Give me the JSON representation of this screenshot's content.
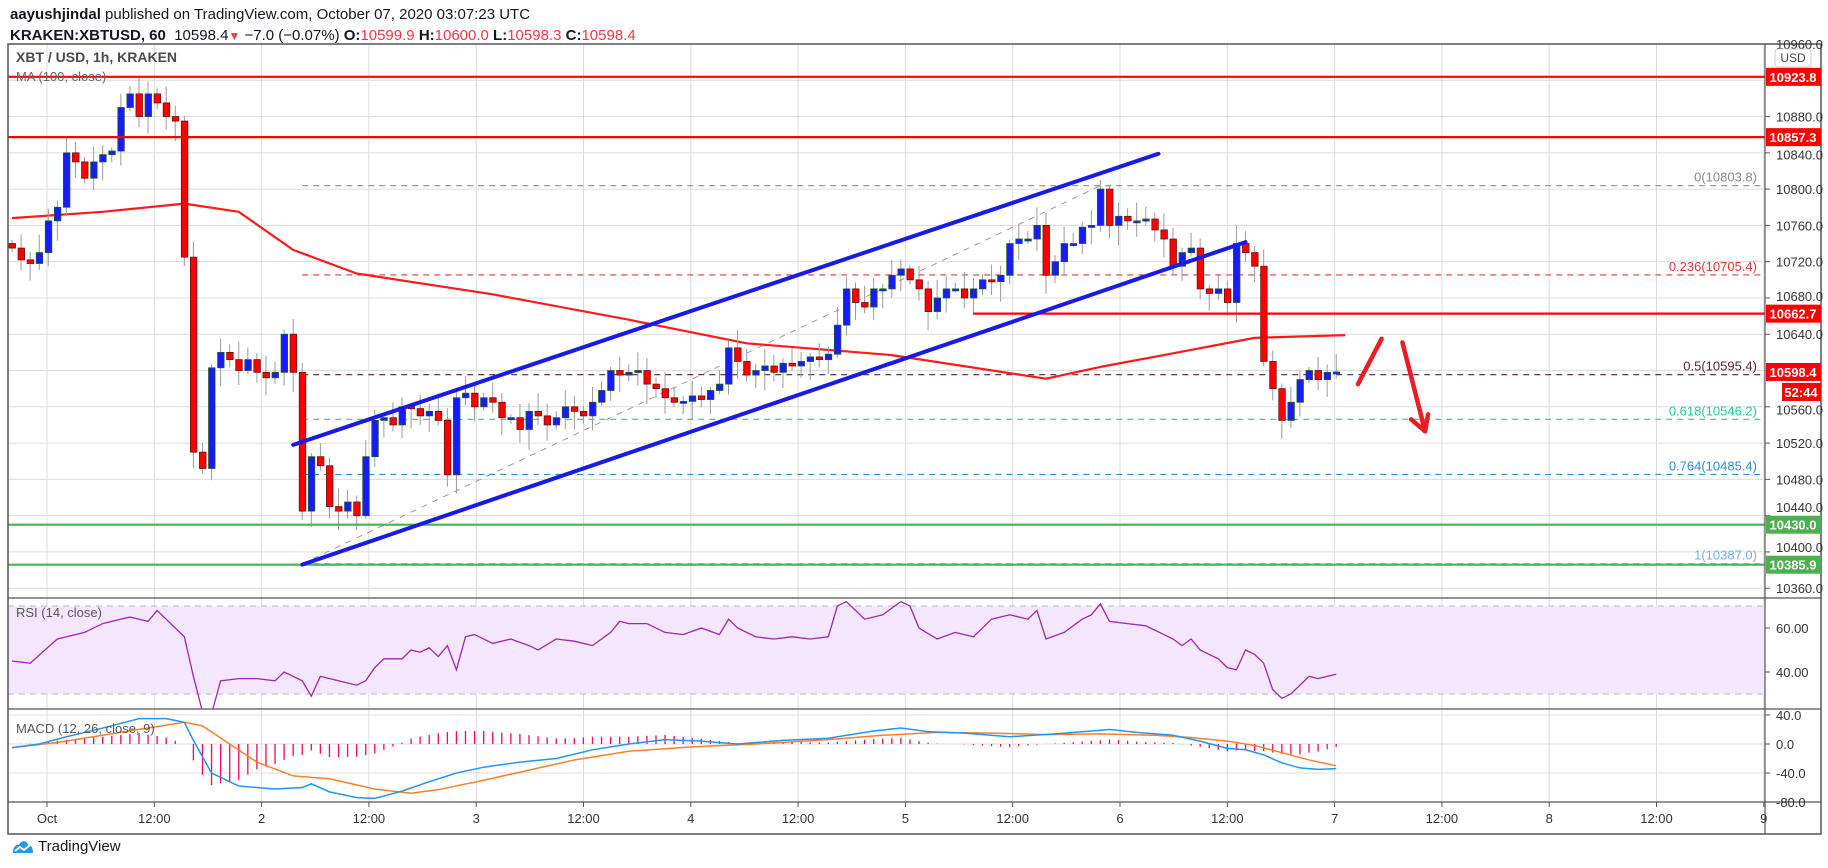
{
  "header": {
    "author": "aayushjindal",
    "published": " published on TradingView.com, October 07, 2020 03:07:23 UTC",
    "symbol": "KRAKEN:XBTUSD, 60",
    "last": "10598.4",
    "change": "−7.0 (−0.07%)",
    "o_label": "O:",
    "o": "10599.9",
    "h_label": "H:",
    "h": "10600.0",
    "l_label": "L:",
    "l": "10598.3",
    "c_label": "C:",
    "c": "10598.4"
  },
  "legend": {
    "title": "XBT / USD, 1h, KRAKEN",
    "ma": "MA (100, close)",
    "rsi": "RSI (14, close)",
    "macd": "MACD (12, 26, close, 9)"
  },
  "footer": {
    "brand": "TradingView"
  },
  "colors": {
    "up": "#1a1aff",
    "down": "#ff0000",
    "ma": "#ff1a1a",
    "channel": "#1a1ae6",
    "support": "#4caf50",
    "resistance": "#ff0000",
    "rsi": "#9c27b0",
    "macd": "#2196f3",
    "signal": "#ff7f27",
    "hist": "#ff0066"
  },
  "chart_data": {
    "type": "candlestick",
    "title": "XBT / USD, 1h, KRAKEN",
    "first_open": 10740,
    "closes": [
      10735,
      10722,
      10718,
      10730,
      10765,
      10780,
      10840,
      10830,
      10812,
      10830,
      10838,
      10842,
      10890,
      10905,
      10880,
      10905,
      10895,
      10880,
      10875,
      10725,
      10510,
      10492,
      10603,
      10620,
      10612,
      10600,
      10612,
      10598,
      10592,
      10598,
      10640,
      10598,
      10445,
      10505,
      10495,
      10450,
      10445,
      10455,
      10440,
      10505,
      10545,
      10548,
      10540,
      10560,
      10558,
      10550,
      10555,
      10545,
      10485,
      10570,
      10575,
      10560,
      10570,
      10565,
      10548,
      10548,
      10535,
      10555,
      10550,
      10540,
      10548,
      10560,
      10555,
      10550,
      10565,
      10578,
      10600,
      10595,
      10598,
      10600,
      10585,
      10580,
      10570,
      10565,
      10566,
      10572,
      10568,
      10578,
      10585,
      10625,
      10610,
      10595,
      10600,
      10605,
      10598,
      10608,
      10605,
      10610,
      10615,
      10612,
      10618,
      10650,
      10690,
      10675,
      10670,
      10690,
      10690,
      10705,
      10712,
      10700,
      10690,
      10665,
      10680,
      10690,
      10690,
      10680,
      10690,
      10700,
      10698,
      10705,
      10740,
      10745,
      10745,
      10760,
      10705,
      10720,
      10740,
      10740,
      10758,
      10760,
      10800,
      10760,
      10770,
      10765,
      10765,
      10767,
      10755,
      10745,
      10715,
      10730,
      10735,
      10690,
      10685,
      10690,
      10675,
      10740,
      10730,
      10715,
      10610,
      10580,
      10545,
      10565,
      10590,
      10600,
      10590,
      10598,
      10598.4
    ],
    "ma100": [
      [
        0,
        10768
      ],
      [
        10,
        10775
      ],
      [
        19,
        10784
      ],
      [
        25,
        10775
      ],
      [
        31,
        10733
      ],
      [
        38,
        10707
      ],
      [
        53,
        10684
      ],
      [
        68,
        10656
      ],
      [
        81,
        10630
      ],
      [
        97,
        10617
      ],
      [
        114,
        10591
      ],
      [
        120,
        10604
      ],
      [
        127,
        10617
      ],
      [
        137,
        10636
      ],
      [
        147,
        10639
      ]
    ],
    "price_axis": {
      "min": 10350,
      "max": 10960,
      "unit": "USD",
      "ticks": [
        "10960.0",
        "10880.0",
        "10840.0",
        "10800.0",
        "10760.0",
        "10720.0",
        "10680.0",
        "10640.0",
        "10560.0",
        "10520.0",
        "10480.0",
        "10440.0",
        "10400.0",
        "10360.0"
      ]
    },
    "time_axis": [
      "Oct",
      "12:00",
      "2",
      "12:00",
      "3",
      "12:00",
      "4",
      "12:00",
      "5",
      "12:00",
      "6",
      "12:00",
      "7",
      "12:00",
      "8",
      "12:00",
      "9"
    ],
    "horizontal_levels": [
      {
        "price": 10923.8,
        "label": "10923.8",
        "kind": "resistance",
        "from": 0
      },
      {
        "price": 10857.3,
        "label": "10857.3",
        "kind": "resistance",
        "from": 0
      },
      {
        "price": 10662.7,
        "label": "10662.7",
        "kind": "resistance",
        "from": 106
      },
      {
        "price": 10430.0,
        "label": "10430.0",
        "kind": "support",
        "from": 0
      },
      {
        "price": 10385.9,
        "label": "10385.9",
        "kind": "support",
        "from": 0
      }
    ],
    "last_price_tag": {
      "price": 10598.4,
      "label": "10598.4",
      "countdown": "52:44"
    },
    "fibonacci": {
      "from_index": 32,
      "levels": [
        {
          "label": "0(10803.8)",
          "price": 10803.8,
          "color": "#8a8a8a"
        },
        {
          "label": "0.236(10705.4)",
          "price": 10705.4,
          "color": "#e53935"
        },
        {
          "label": "0.5(10595.4)",
          "price": 10595.4,
          "color": "#5a1f33"
        },
        {
          "label": "0.618(10546.2)",
          "price": 10546.2,
          "color": "#1fcf8f"
        },
        {
          "label": "0.764(10485.4)",
          "price": 10485.4,
          "color": "#2d8fd0"
        },
        {
          "label": "1(10387.0)",
          "price": 10387.0,
          "color": "#6fb6e6"
        }
      ]
    },
    "channel": {
      "upper": [
        [
          31,
          10518
        ],
        [
          126.4,
          10839
        ]
      ],
      "lower": [
        [
          32,
          10386
        ],
        [
          136,
          10741.6
        ]
      ],
      "fib_trend": [
        [
          32,
          10387
        ],
        [
          120,
          10803.8
        ]
      ]
    },
    "arrows": {
      "up": [
        [
          148.4,
          10585
        ],
        [
          151,
          10635
        ]
      ],
      "down": [
        [
          153.3,
          10631
        ],
        [
          155.8,
          10533
        ]
      ]
    },
    "rsi": {
      "label": "RSI (14, close)",
      "upper_band": 70,
      "lower_band": 30,
      "ticks": [
        "60.00",
        "40.00"
      ],
      "points": [
        [
          0,
          45
        ],
        [
          2,
          44
        ],
        [
          5,
          55
        ],
        [
          8,
          58
        ],
        [
          10,
          62
        ],
        [
          13,
          65
        ],
        [
          15,
          63
        ],
        [
          16,
          68
        ],
        [
          17,
          64
        ],
        [
          18,
          60
        ],
        [
          19,
          56
        ],
        [
          20,
          38
        ],
        [
          21,
          22
        ],
        [
          22,
          21
        ],
        [
          23,
          36
        ],
        [
          25,
          37
        ],
        [
          27,
          37
        ],
        [
          29,
          36
        ],
        [
          30,
          40
        ],
        [
          32,
          36
        ],
        [
          33,
          29
        ],
        [
          34,
          38
        ],
        [
          36,
          36
        ],
        [
          38,
          34
        ],
        [
          39,
          36
        ],
        [
          40,
          42
        ],
        [
          41,
          46
        ],
        [
          43,
          46
        ],
        [
          44,
          50
        ],
        [
          45,
          49
        ],
        [
          46,
          51
        ],
        [
          47,
          47
        ],
        [
          48,
          52
        ],
        [
          49,
          41
        ],
        [
          50,
          56
        ],
        [
          51,
          57
        ],
        [
          53,
          53
        ],
        [
          55,
          55
        ],
        [
          57,
          52
        ],
        [
          58,
          50
        ],
        [
          60,
          55
        ],
        [
          62,
          54
        ],
        [
          64,
          52
        ],
        [
          65,
          55
        ],
        [
          66,
          58
        ],
        [
          67,
          63
        ],
        [
          68,
          62
        ],
        [
          70,
          62
        ],
        [
          72,
          58
        ],
        [
          74,
          57
        ],
        [
          76,
          60
        ],
        [
          78,
          57
        ],
        [
          79,
          64
        ],
        [
          80,
          60
        ],
        [
          82,
          56
        ],
        [
          84,
          55
        ],
        [
          86,
          56
        ],
        [
          88,
          55
        ],
        [
          90,
          56
        ],
        [
          91,
          70
        ],
        [
          92,
          72
        ],
        [
          94,
          64
        ],
        [
          96,
          66
        ],
        [
          98,
          72
        ],
        [
          99,
          70
        ],
        [
          100,
          60
        ],
        [
          102,
          55
        ],
        [
          104,
          58
        ],
        [
          106,
          56
        ],
        [
          108,
          64
        ],
        [
          110,
          66
        ],
        [
          112,
          64
        ],
        [
          113,
          68
        ],
        [
          114,
          55
        ],
        [
          116,
          58
        ],
        [
          118,
          64
        ],
        [
          119,
          66
        ],
        [
          120,
          71
        ],
        [
          121,
          63
        ],
        [
          123,
          62
        ],
        [
          125,
          61
        ],
        [
          127,
          57
        ],
        [
          128,
          55
        ],
        [
          129,
          52
        ],
        [
          130,
          55
        ],
        [
          131,
          50
        ],
        [
          132,
          48
        ],
        [
          133,
          46
        ],
        [
          134,
          42
        ],
        [
          135,
          41
        ],
        [
          136,
          50
        ],
        [
          137,
          48
        ],
        [
          138,
          44
        ],
        [
          139,
          32
        ],
        [
          140,
          28
        ],
        [
          141,
          30
        ],
        [
          142,
          34
        ],
        [
          143,
          38
        ],
        [
          144,
          37
        ],
        [
          145,
          38
        ],
        [
          146,
          39
        ]
      ]
    },
    "macd": {
      "label": "MACD (12, 26, close, 9)",
      "ticks": [
        "40.0",
        "0.0",
        "-40.0",
        "-80.0"
      ],
      "macd_points": [
        [
          0,
          -5
        ],
        [
          3,
          0
        ],
        [
          6,
          10
        ],
        [
          10,
          22
        ],
        [
          14,
          35
        ],
        [
          17,
          35
        ],
        [
          19,
          30
        ],
        [
          20,
          5
        ],
        [
          22,
          -40
        ],
        [
          25,
          -58
        ],
        [
          29,
          -62
        ],
        [
          32,
          -60
        ],
        [
          33,
          -55
        ],
        [
          35,
          -66
        ],
        [
          38,
          -74
        ],
        [
          40,
          -75
        ],
        [
          43,
          -65
        ],
        [
          46,
          -52
        ],
        [
          49,
          -40
        ],
        [
          52,
          -32
        ],
        [
          56,
          -25
        ],
        [
          60,
          -20
        ],
        [
          64,
          -8
        ],
        [
          68,
          0
        ],
        [
          72,
          6
        ],
        [
          76,
          4
        ],
        [
          80,
          0
        ],
        [
          85,
          5
        ],
        [
          90,
          8
        ],
        [
          95,
          18
        ],
        [
          98,
          22
        ],
        [
          101,
          17
        ],
        [
          105,
          15
        ],
        [
          110,
          10
        ],
        [
          115,
          14
        ],
        [
          119,
          18
        ],
        [
          121,
          20
        ],
        [
          124,
          16
        ],
        [
          128,
          12
        ],
        [
          131,
          4
        ],
        [
          134,
          -6
        ],
        [
          136,
          -8
        ],
        [
          138,
          -15
        ],
        [
          140,
          -26
        ],
        [
          142,
          -33
        ],
        [
          144,
          -35
        ],
        [
          146,
          -34
        ]
      ],
      "signal_points": [
        [
          0,
          -5
        ],
        [
          5,
          2
        ],
        [
          10,
          12
        ],
        [
          15,
          22
        ],
        [
          19,
          30
        ],
        [
          21,
          25
        ],
        [
          24,
          0
        ],
        [
          27,
          -25
        ],
        [
          31,
          -44
        ],
        [
          35,
          -48
        ],
        [
          40,
          -62
        ],
        [
          44,
          -68
        ],
        [
          47,
          -63
        ],
        [
          52,
          -50
        ],
        [
          57,
          -36
        ],
        [
          62,
          -22
        ],
        [
          68,
          -10
        ],
        [
          75,
          -4
        ],
        [
          82,
          0
        ],
        [
          90,
          6
        ],
        [
          96,
          12
        ],
        [
          102,
          16
        ],
        [
          108,
          15
        ],
        [
          114,
          13
        ],
        [
          120,
          14
        ],
        [
          126,
          12
        ],
        [
          130,
          9
        ],
        [
          134,
          4
        ],
        [
          137,
          -2
        ],
        [
          140,
          -12
        ],
        [
          143,
          -22
        ],
        [
          146,
          -30
        ]
      ]
    }
  }
}
